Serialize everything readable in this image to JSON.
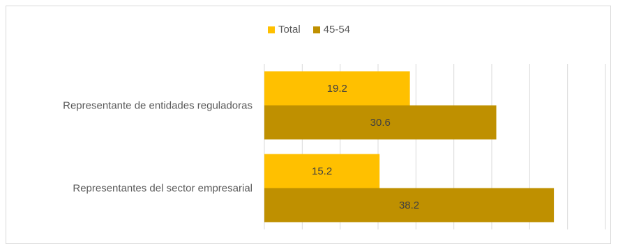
{
  "chart_data": {
    "type": "bar",
    "orientation": "horizontal",
    "categories": [
      "Representante de entidades reguladoras",
      "Representantes del sector empresarial"
    ],
    "series": [
      {
        "name": "Total",
        "values": [
          19.2,
          15.2
        ],
        "color": "#ffc000"
      },
      {
        "name": "45-54",
        "values": [
          30.6,
          38.2
        ],
        "color": "#bf9000"
      }
    ],
    "xlim": [
      0,
      45
    ],
    "grid": true,
    "legend_position": "top",
    "data_labels": true
  }
}
